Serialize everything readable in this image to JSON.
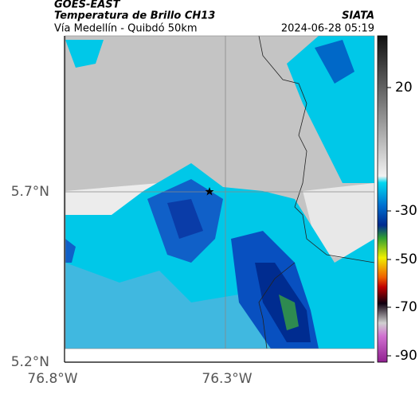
{
  "header": {
    "title": "GOES-EAST",
    "subtitle": "Temperatura de Brillo CH13",
    "source": "SIATA",
    "route": "Vía Medellín - Quibdó 50km",
    "timestamp": "2024-06-28 05:19"
  },
  "axes": {
    "lat_labels": [
      "5.7°N",
      "5.2°N"
    ],
    "lon_labels": [
      "76.8°W",
      "76.3°W"
    ]
  },
  "colorbar": {
    "ticks": [
      20,
      -30,
      -50,
      -70,
      -90
    ]
  }
}
